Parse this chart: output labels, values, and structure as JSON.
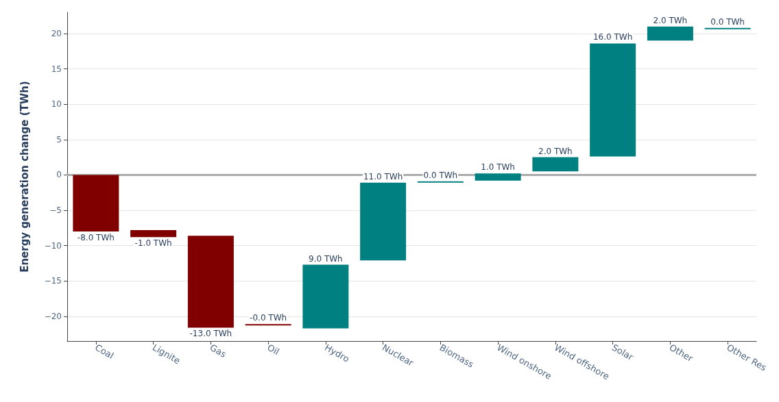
{
  "chart_data": {
    "type": "bar",
    "ylabel": "Energy generation change (TWh)",
    "categories": [
      "Coal",
      "Lignite",
      "Gas",
      "Oil",
      "Hydro",
      "Nuclear",
      "Biomass",
      "Wind onshore",
      "Wind offshore",
      "Solar",
      "Other",
      "Other Res"
    ],
    "base": [
      0,
      -7.8,
      -8.6,
      -21.1,
      -21.7,
      -12.1,
      -0.9,
      -0.8,
      0.5,
      2.6,
      19.0,
      20.8
    ],
    "values": [
      -8.0,
      -1.0,
      -13.0,
      -0.0,
      9.0,
      11.0,
      0.0,
      1.0,
      2.0,
      16.0,
      2.0,
      0.0
    ],
    "value_labels": [
      "-8.0 TWh",
      "-1.0 TWh",
      "-13.0 TWh",
      "-0.0 TWh",
      "9.0 TWh",
      "11.0 TWh",
      "0.0 TWh",
      "1.0 TWh",
      "2.0 TWh",
      "16.0 TWh",
      "2.0 TWh",
      "0.0 TWh"
    ],
    "colors": [
      "#800000",
      "#800000",
      "#800000",
      "#800000",
      "#008080",
      "#008080",
      "#008080",
      "#008080",
      "#008080",
      "#008080",
      "#008080",
      "#008080"
    ],
    "ylim": [
      -23.5,
      23
    ],
    "yticks": [
      -20,
      -15,
      -10,
      -5,
      0,
      5,
      10,
      15,
      20
    ],
    "grid": "y",
    "ref_lines": [
      {
        "axis": "y",
        "value": 0,
        "color": "#aaaaaa"
      }
    ]
  }
}
